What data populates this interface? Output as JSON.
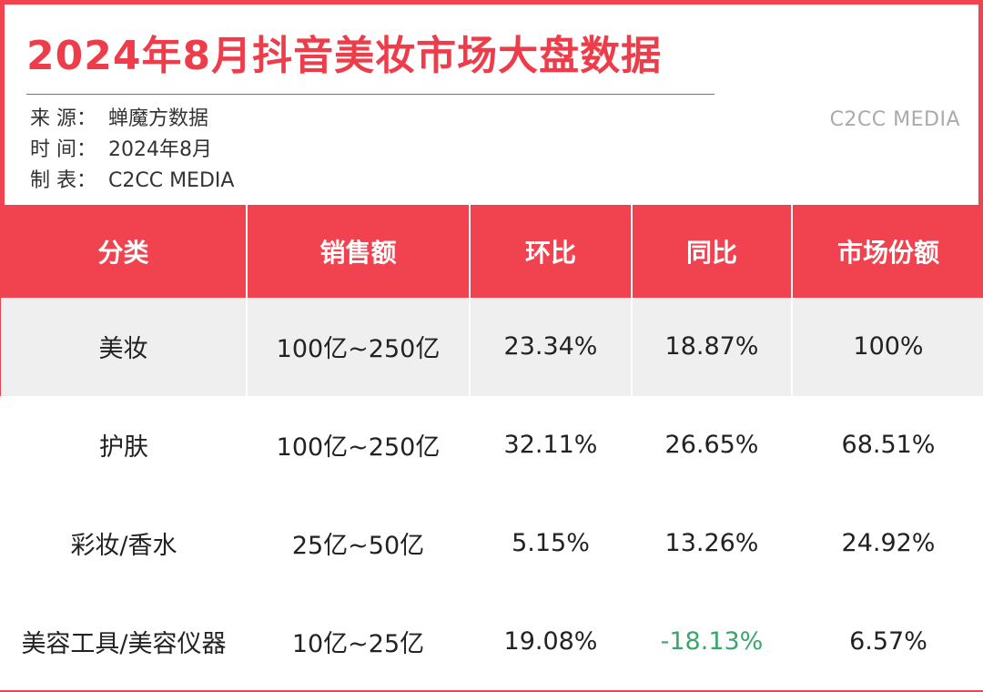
{
  "title": "2024年8月抖音美妆市场大盘数据",
  "meta": [
    {
      "key": "来 源：",
      "value": "蝉魔方数据"
    },
    {
      "key": "时 间：",
      "value": "2024年8月"
    },
    {
      "key": "制 表：",
      "value": "C2CC  MEDIA"
    }
  ],
  "brand": "C2CC MEDIA",
  "colors": {
    "accent": "#f0424f",
    "negative": "#3aa66b",
    "row_shade": "#efefef"
  },
  "chart_data": {
    "type": "table",
    "columns": [
      "分类",
      "销售额",
      "环比",
      "同比",
      "市场份额"
    ],
    "rows": [
      {
        "category": "美妆",
        "sales": "100亿~250亿",
        "mom": "23.34%",
        "yoy": "18.87%",
        "share": "100%"
      },
      {
        "category": "护肤",
        "sales": "100亿~250亿",
        "mom": "32.11%",
        "yoy": "26.65%",
        "share": "68.51%"
      },
      {
        "category": "彩妆/香水",
        "sales": "25亿~50亿",
        "mom": "5.15%",
        "yoy": "13.26%",
        "share": "24.92%"
      },
      {
        "category": "美容工具/美容仪器",
        "sales": "10亿~25亿",
        "mom": "19.08%",
        "yoy": "-18.13%",
        "share": "6.57%"
      }
    ]
  }
}
